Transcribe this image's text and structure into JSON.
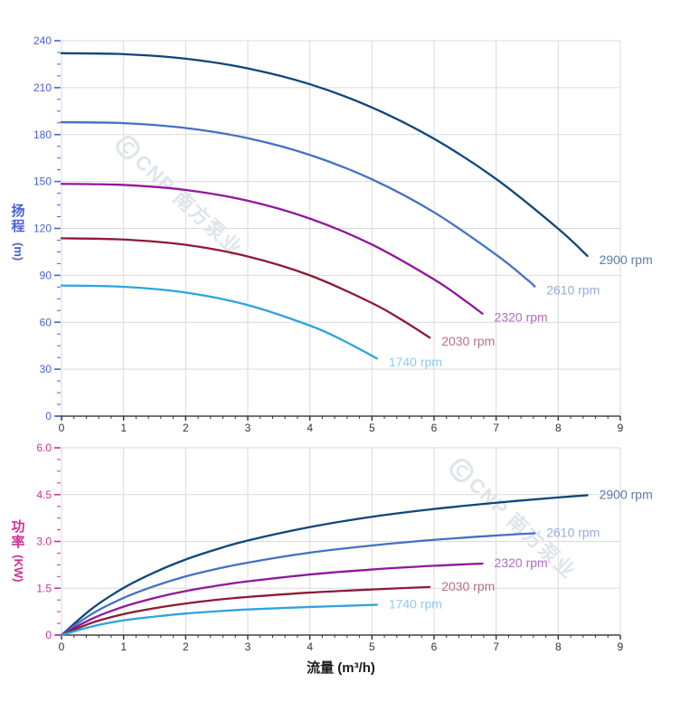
{
  "watermark": {
    "text": "CNP 南方泵业",
    "color": "#e0e3e9"
  },
  "chart_data": [
    {
      "type": "line",
      "title": "",
      "xlabel": "",
      "ylabel": "扬程 (m)",
      "ylabel_main": "扬程",
      "ylabel_unit": "(m)",
      "xlim": [
        0,
        9
      ],
      "ylim": [
        0,
        240
      ],
      "x_ticks": [
        0,
        1,
        2,
        3,
        4,
        5,
        6,
        7,
        8,
        9
      ],
      "x_minor_step": 0.2,
      "y_tick_values": [
        0,
        30,
        60,
        90,
        120,
        150,
        180,
        210,
        240
      ],
      "y_tick_labels": [
        "0",
        "30",
        "60",
        "90",
        "120",
        "150",
        "180",
        "210",
        "240"
      ],
      "y_minor_step": 7.5,
      "grid": true,
      "legend_position": "right-of-curve-end",
      "axis_color": "#4a61d4",
      "x_axis_color": "#333333",
      "grid_color": "#d9d9d9",
      "series": [
        {
          "name": "2900 rpm",
          "color": "#0f4679",
          "label_color": "#5c7ca9",
          "points": [
            [
              0,
              232
            ],
            [
              1,
              231.4
            ],
            [
              2,
              228.5
            ],
            [
              3,
              222.3
            ],
            [
              4,
              212.2
            ],
            [
              5,
              197.3
            ],
            [
              6,
              177.3
            ],
            [
              7,
              151.6
            ],
            [
              8,
              119.8
            ],
            [
              8.47,
              102.4
            ]
          ]
        },
        {
          "name": "2610 rpm",
          "color": "#4470c4",
          "label_color": "#96aadb",
          "points": [
            [
              0,
              187.9
            ],
            [
              1,
              187.3
            ],
            [
              2,
              184.2
            ],
            [
              3,
              177.7
            ],
            [
              4,
              167.0
            ],
            [
              5,
              151.4
            ],
            [
              6,
              130.3
            ],
            [
              7,
              103.2
            ],
            [
              7.5,
              87.3
            ],
            [
              7.62,
              82.9
            ]
          ]
        },
        {
          "name": "2320 rpm",
          "color": "#8f189b",
          "label_color": "#b26cc4",
          "points": [
            [
              0,
              148.5
            ],
            [
              1,
              147.8
            ],
            [
              2,
              144.6
            ],
            [
              3,
              137.7
            ],
            [
              4,
              126.3
            ],
            [
              5,
              109.7
            ],
            [
              6,
              87.4
            ],
            [
              6.5,
              73.8
            ],
            [
              6.78,
              65.5
            ]
          ]
        },
        {
          "name": "2030 rpm",
          "color": "#8e1a34",
          "label_color": "#b76f80",
          "points": [
            [
              0,
              113.7
            ],
            [
              1,
              112.9
            ],
            [
              2,
              109.5
            ],
            [
              3,
              102.1
            ],
            [
              4,
              90.0
            ],
            [
              5,
              72.3
            ],
            [
              5.5,
              61.1
            ],
            [
              5.93,
              50.2
            ]
          ]
        },
        {
          "name": "1740 rpm",
          "color": "#2da4de",
          "label_color": "#8fcaf0",
          "points": [
            [
              0,
              83.5
            ],
            [
              1,
              82.7
            ],
            [
              2,
              79.0
            ],
            [
              3,
              71.0
            ],
            [
              4,
              57.9
            ],
            [
              4.5,
              49.1
            ],
            [
              5.08,
              36.9
            ]
          ]
        }
      ]
    },
    {
      "type": "line",
      "title": "",
      "xlabel": "流量 (m³/h)",
      "ylabel": "功率 (KW)",
      "ylabel_main": "功率",
      "ylabel_unit": "(KW)",
      "xlim": [
        0,
        9
      ],
      "ylim": [
        0,
        6
      ],
      "x_ticks": [
        0,
        1,
        2,
        3,
        4,
        5,
        6,
        7,
        8,
        9
      ],
      "x_minor_step": 0.2,
      "y_tick_values": [
        0,
        1.5,
        3,
        4.5,
        6
      ],
      "y_tick_labels": [
        "0",
        "1.5",
        "3.0",
        "4.5",
        "6.0"
      ],
      "y_minor_step": 0.375,
      "grid": true,
      "legend_position": "right-of-curve-end",
      "axis_color": "#cc3399",
      "x_axis_color": "#333333",
      "grid_color": "#d9d9d9",
      "series": [
        {
          "name": "2900 rpm",
          "color": "#0f4679",
          "label_color": "#5c7ca9",
          "points": [
            [
              0,
              0
            ],
            [
              0.5,
              0.86
            ],
            [
              1,
              1.51
            ],
            [
              1.5,
              2.01
            ],
            [
              2,
              2.42
            ],
            [
              2.5,
              2.75
            ],
            [
              3,
              3.03
            ],
            [
              4,
              3.46
            ],
            [
              5,
              3.79
            ],
            [
              6,
              4.04
            ],
            [
              7,
              4.24
            ],
            [
              8,
              4.41
            ],
            [
              8.47,
              4.48
            ]
          ]
        },
        {
          "name": "2610 rpm",
          "color": "#4470c4",
          "label_color": "#96aadb",
          "points": [
            [
              0,
              0
            ],
            [
              0.5,
              0.69
            ],
            [
              1,
              1.19
            ],
            [
              1.5,
              1.57
            ],
            [
              2,
              1.88
            ],
            [
              2.5,
              2.12
            ],
            [
              3,
              2.32
            ],
            [
              4,
              2.64
            ],
            [
              5,
              2.87
            ],
            [
              6,
              3.05
            ],
            [
              7,
              3.19
            ],
            [
              7.62,
              3.26
            ]
          ]
        },
        {
          "name": "2320 rpm",
          "color": "#8f189b",
          "label_color": "#b26cc4",
          "points": [
            [
              0,
              0
            ],
            [
              0.5,
              0.53
            ],
            [
              1,
              0.91
            ],
            [
              1.5,
              1.19
            ],
            [
              2,
              1.41
            ],
            [
              2.5,
              1.58
            ],
            [
              3,
              1.72
            ],
            [
              4,
              1.94
            ],
            [
              5,
              2.1
            ],
            [
              6,
              2.22
            ],
            [
              6.78,
              2.29
            ]
          ]
        },
        {
          "name": "2030 rpm",
          "color": "#8e1a34",
          "label_color": "#b76f80",
          "points": [
            [
              0,
              0
            ],
            [
              0.5,
              0.4
            ],
            [
              1,
              0.67
            ],
            [
              1.5,
              0.86
            ],
            [
              2,
              1.01
            ],
            [
              2.5,
              1.13
            ],
            [
              3,
              1.22
            ],
            [
              4,
              1.36
            ],
            [
              5,
              1.46
            ],
            [
              5.93,
              1.54
            ]
          ]
        },
        {
          "name": "1740 rpm",
          "color": "#2da4de",
          "label_color": "#8fcaf0",
          "points": [
            [
              0,
              0
            ],
            [
              0.5,
              0.28
            ],
            [
              1,
              0.47
            ],
            [
              1.5,
              0.59
            ],
            [
              2,
              0.69
            ],
            [
              2.5,
              0.76
            ],
            [
              3,
              0.82
            ],
            [
              4,
              0.9
            ],
            [
              5.08,
              0.97
            ]
          ]
        }
      ]
    }
  ]
}
